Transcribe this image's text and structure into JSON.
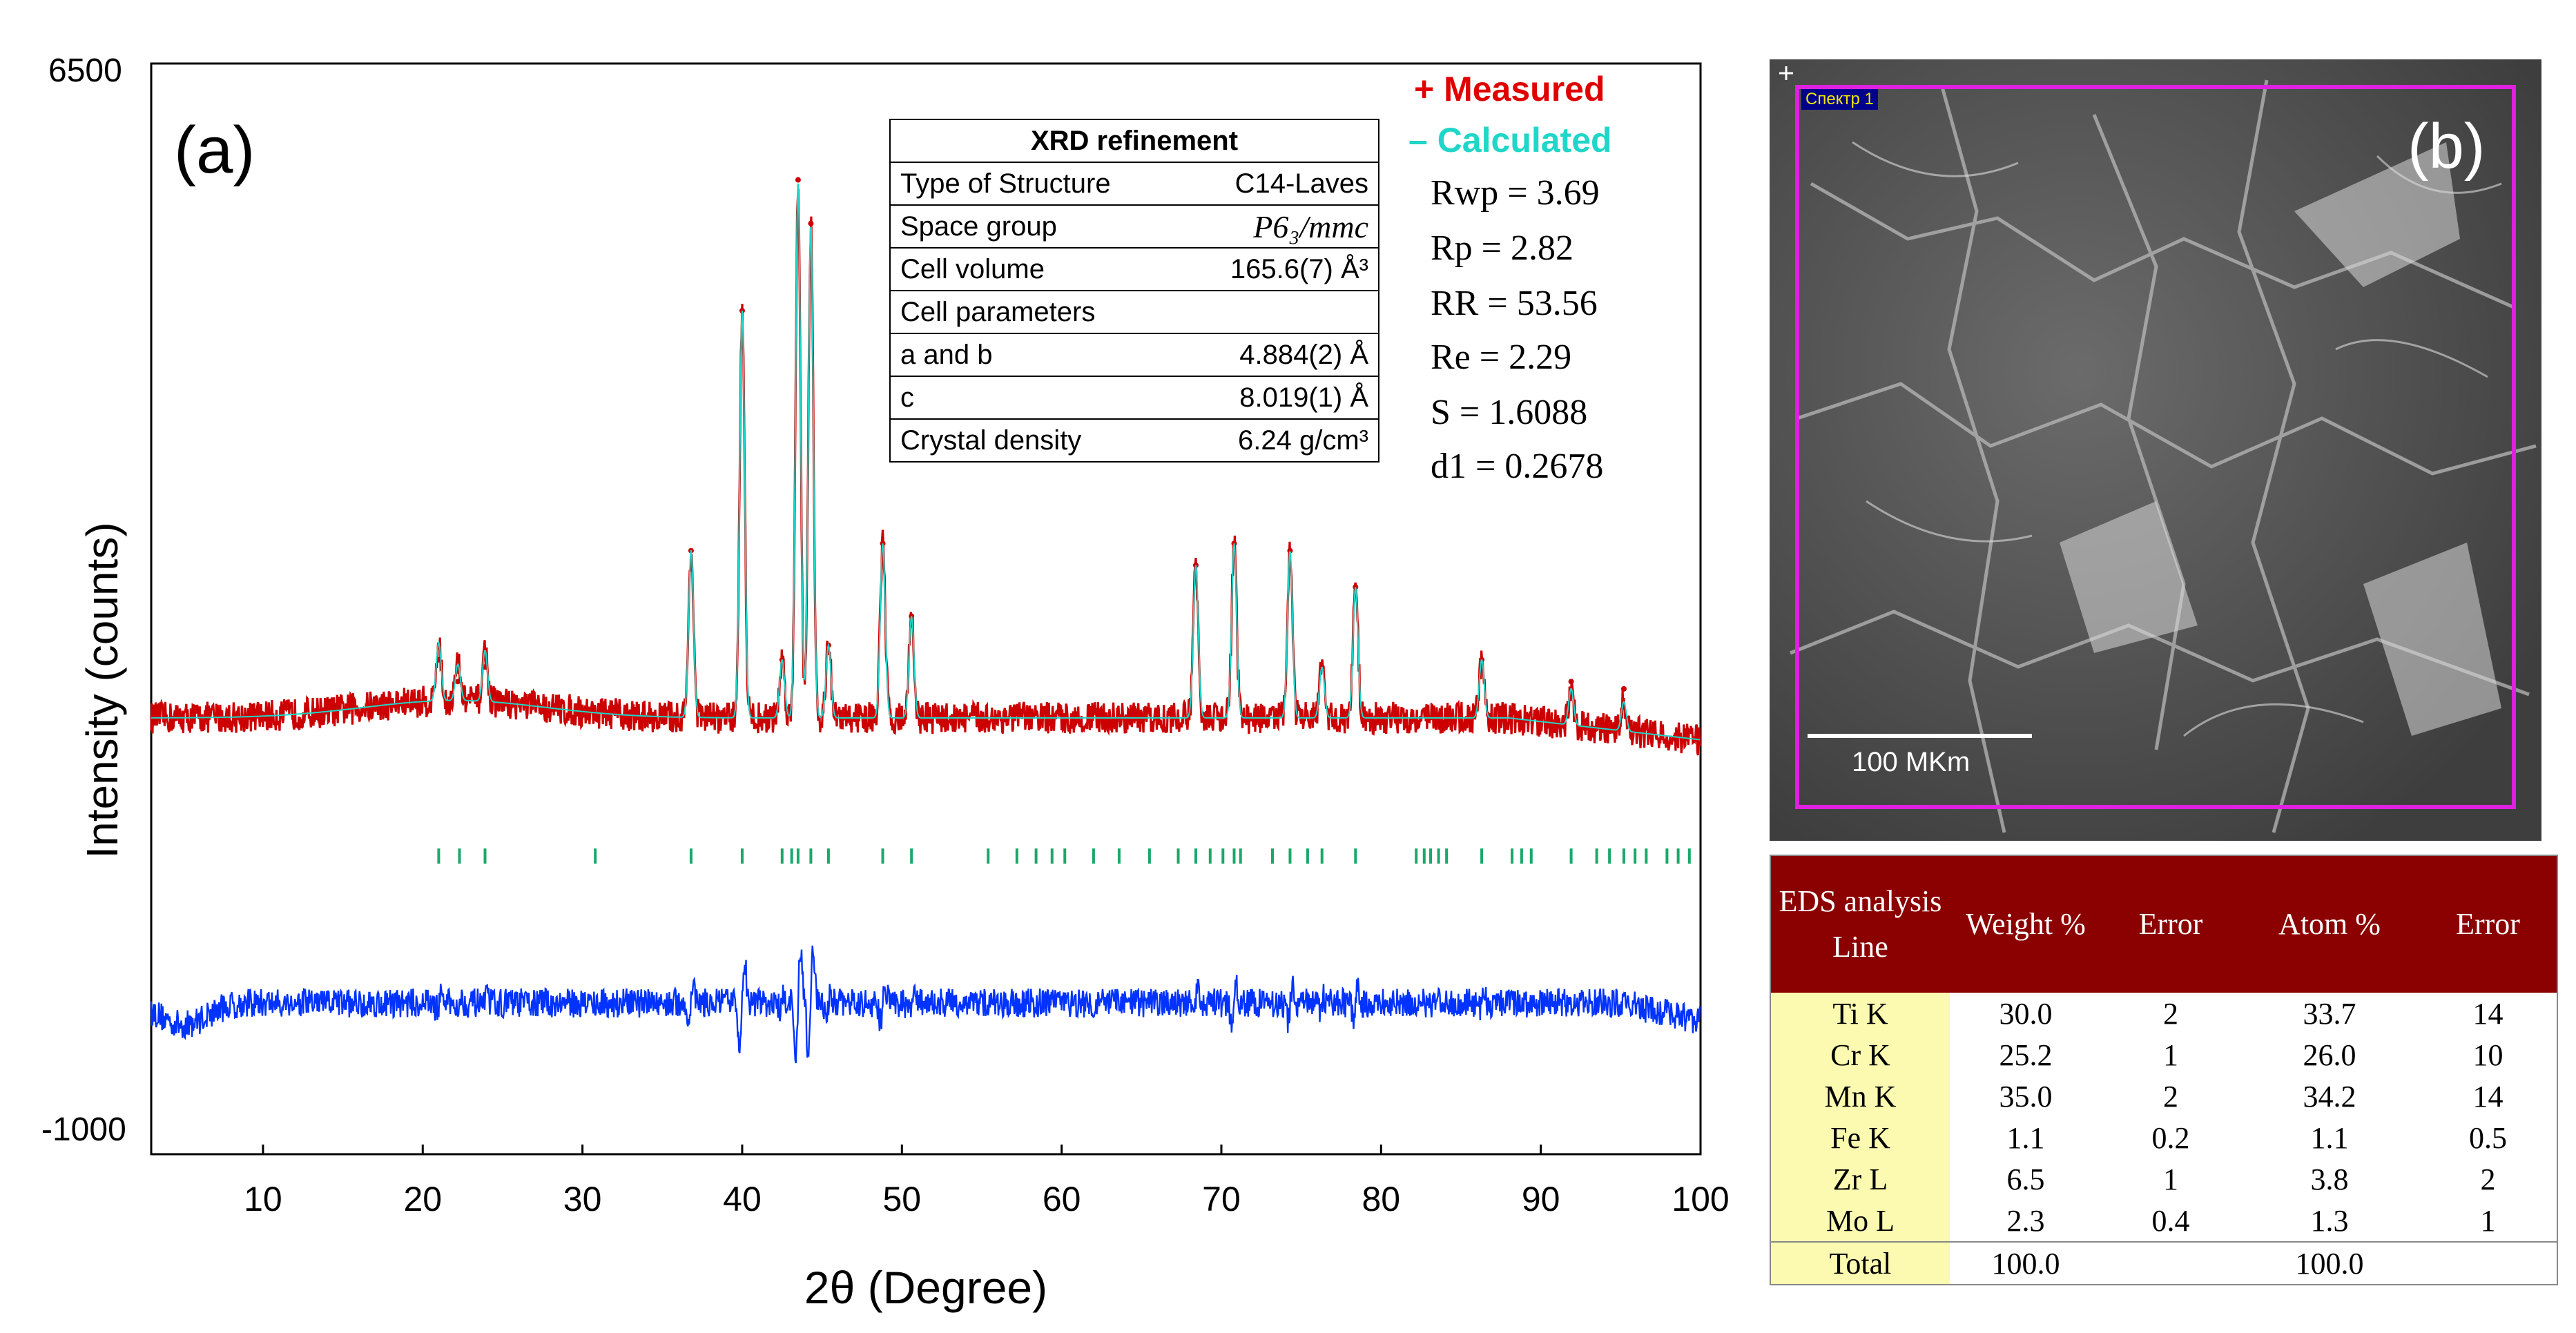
{
  "panel_a": {
    "label": "(a)",
    "legend": {
      "measured": "+ Measured",
      "calculated": "– Calculated",
      "measured_color": "#e00000",
      "calculated_color": "#1fd6c8"
    },
    "fit_stats": [
      "Rwp = 3.69",
      "Rp = 2.82",
      "RR = 53.56",
      "Re = 2.29",
      "S = 1.6088",
      "d1 = 0.2678"
    ],
    "xrd_table": {
      "title": "XRD refinement",
      "rows": [
        {
          "label": "Type of Structure",
          "value": "C14-Laves"
        },
        {
          "label": "Space group",
          "value": "P6₃/mmc"
        },
        {
          "label": "Cell volume",
          "value": "165.6(7) Å³"
        },
        {
          "label": "Cell parameters",
          "value": ""
        },
        {
          "label": "a and b",
          "value": "4.884(2) Å"
        },
        {
          "label": "c",
          "value": "8.019(1) Å"
        },
        {
          "label": "Crystal density",
          "value": "6.24 g/cm³"
        }
      ]
    }
  },
  "panel_b": {
    "label": "(b)",
    "spectrum_label": "Спектр 1",
    "scale_bar": "100 MKm",
    "frame_color": "#e020e0",
    "eds_table": {
      "headers": [
        "EDS analysis Line",
        "Weight %",
        "Error",
        "Atom %",
        "Error"
      ],
      "rows": [
        [
          "Ti K",
          "30.0",
          "2",
          "33.7",
          "14"
        ],
        [
          "Cr K",
          "25.2",
          "1",
          "26.0",
          "10"
        ],
        [
          "Mn K",
          "35.0",
          "2",
          "34.2",
          "14"
        ],
        [
          "Fe K",
          "1.1",
          "0.2",
          "1.1",
          "0.5"
        ],
        [
          "Zr L",
          "6.5",
          "1",
          "3.8",
          "2"
        ],
        [
          "Mo L",
          "2.3",
          "0.4",
          "1.3",
          "1"
        ]
      ],
      "total": [
        "Total",
        "100.0",
        "",
        "100.0",
        ""
      ]
    }
  },
  "chart_data": {
    "type": "line",
    "title": "",
    "xlabel": "2θ (Degree)",
    "ylabel": "Intensity (counts)",
    "xlim": [
      3,
      100
    ],
    "ylim": [
      -1000,
      6500
    ],
    "x_ticks": [
      10,
      20,
      30,
      40,
      50,
      60,
      70,
      80,
      90,
      100
    ],
    "y_tick_labels": [
      "6500",
      "-1000"
    ],
    "baseline_measured": 2000,
    "baseline_difference": 40,
    "series": [
      {
        "name": "Measured",
        "color": "#cc0000"
      },
      {
        "name": "Calculated",
        "color": "#1fd6c8"
      },
      {
        "name": "Difference",
        "color": "#0033ff"
      }
    ],
    "peaks": [
      {
        "x": 21.0,
        "y": 2400
      },
      {
        "x": 22.2,
        "y": 2250
      },
      {
        "x": 23.9,
        "y": 2350
      },
      {
        "x": 36.8,
        "y": 3150
      },
      {
        "x": 40.0,
        "y": 4800
      },
      {
        "x": 42.5,
        "y": 2400
      },
      {
        "x": 43.5,
        "y": 5700
      },
      {
        "x": 44.3,
        "y": 5400
      },
      {
        "x": 45.4,
        "y": 2500
      },
      {
        "x": 48.8,
        "y": 3200
      },
      {
        "x": 50.6,
        "y": 2700
      },
      {
        "x": 68.4,
        "y": 3050
      },
      {
        "x": 70.8,
        "y": 3200
      },
      {
        "x": 74.3,
        "y": 3150
      },
      {
        "x": 76.3,
        "y": 2350
      },
      {
        "x": 78.4,
        "y": 2900
      },
      {
        "x": 86.3,
        "y": 2400
      },
      {
        "x": 91.9,
        "y": 2250
      },
      {
        "x": 95.2,
        "y": 2200
      }
    ],
    "bragg_positions": [
      21.0,
      22.3,
      23.9,
      30.8,
      36.8,
      40.0,
      42.5,
      43.1,
      43.5,
      44.3,
      45.4,
      48.8,
      50.6,
      55.4,
      57.2,
      58.4,
      59.4,
      60.2,
      62.0,
      63.6,
      65.5,
      67.3,
      68.4,
      69.3,
      70.1,
      70.8,
      71.2,
      73.2,
      74.3,
      75.4,
      76.3,
      78.4,
      82.2,
      82.7,
      83.1,
      83.6,
      84.1,
      86.3,
      88.2,
      88.8,
      89.4,
      91.9,
      93.5,
      94.3,
      95.2,
      95.9,
      96.6,
      97.9,
      98.6,
      99.3
    ]
  }
}
